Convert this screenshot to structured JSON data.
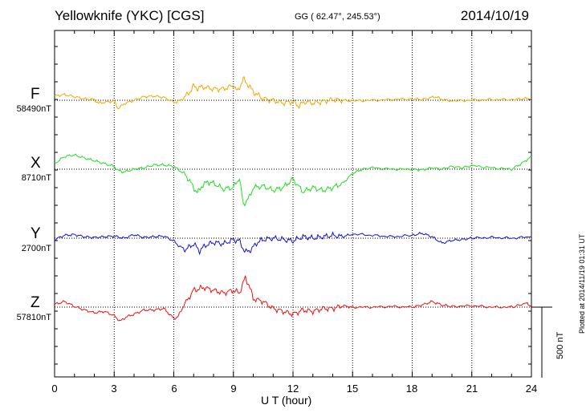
{
  "header": {
    "station": "Yellowknife (YKC)  [CGS]",
    "coords": "GG ( 62.47°, 245.53°)",
    "date": "2014/10/19"
  },
  "side_note": "Plotted at 2014/11/19 01:31  UT",
  "scale": {
    "label": "500 nT",
    "value_nT": 500
  },
  "chart_data": {
    "type": "line",
    "title": "Yellowknife (YKC)  [CGS]",
    "xlabel": "U T (hour)",
    "ylabel": "",
    "xlim": [
      0,
      24
    ],
    "x_ticks": [
      "0",
      "3",
      "6",
      "9",
      "12",
      "15",
      "18",
      "21",
      "24"
    ],
    "grid": true,
    "series": [
      {
        "name": "F",
        "base_label": "58490nT",
        "baseline_nT": 58490,
        "color": "#f0a800",
        "x": [
          0,
          0.5,
          1,
          1.5,
          2,
          2.2,
          2.5,
          3,
          3.2,
          3.5,
          4,
          4.5,
          5,
          5.5,
          6,
          6.2,
          6.5,
          6.8,
          7,
          7.2,
          7.5,
          8,
          8.5,
          9,
          9.2,
          9.5,
          9.8,
          10,
          10.2,
          10.5,
          11,
          11.5,
          12,
          12.3,
          12.6,
          13,
          13.5,
          14,
          14.5,
          15,
          16,
          17,
          18,
          18.5,
          19,
          19.2,
          19.5,
          20,
          21,
          22,
          23,
          23.5,
          24
        ],
        "y": [
          30,
          40,
          25,
          10,
          5,
          -20,
          -15,
          -5,
          -60,
          -25,
          0,
          25,
          30,
          20,
          -15,
          -10,
          15,
          60,
          100,
          85,
          95,
          80,
          80,
          105,
          60,
          150,
          100,
          60,
          40,
          10,
          0,
          -20,
          -10,
          -40,
          -10,
          -20,
          -10,
          5,
          0,
          -5,
          0,
          5,
          10,
          5,
          20,
          25,
          5,
          -5,
          0,
          5,
          5,
          10,
          15
        ]
      },
      {
        "name": "X",
        "base_label": "8710nT",
        "baseline_nT": 8710,
        "color": "#22dd22",
        "x": [
          0,
          0.5,
          1,
          1.5,
          2,
          2.5,
          3,
          3.2,
          3.5,
          4,
          4.5,
          5,
          5.5,
          6,
          6.3,
          6.6,
          7,
          7.2,
          7.4,
          7.7,
          8,
          8.5,
          9,
          9.3,
          9.5,
          9.8,
          10,
          10.5,
          11,
          11.5,
          12,
          12.5,
          13,
          13.5,
          14,
          14.5,
          15,
          15.5,
          16,
          17,
          18,
          18.5,
          19,
          19.5,
          20,
          20.5,
          21,
          22,
          23,
          23.5,
          24
        ],
        "y": [
          40,
          90,
          100,
          80,
          60,
          40,
          20,
          -10,
          -20,
          0,
          10,
          30,
          30,
          20,
          -10,
          -40,
          -130,
          -170,
          -120,
          -90,
          -100,
          -140,
          -130,
          -60,
          -250,
          -200,
          -130,
          -120,
          -150,
          -130,
          -70,
          -160,
          -130,
          -150,
          -130,
          -100,
          -30,
          0,
          10,
          0,
          0,
          -5,
          10,
          0,
          20,
          10,
          25,
          10,
          0,
          40,
          90
        ]
      },
      {
        "name": "Y",
        "base_label": "2700nT",
        "baseline_nT": 2700,
        "color": "#1010dd",
        "x": [
          0,
          0.5,
          1,
          1.5,
          2,
          2.5,
          3,
          3.5,
          4,
          4.5,
          5,
          5.5,
          6,
          6.3,
          6.6,
          7,
          7.3,
          7.6,
          8,
          8.5,
          9,
          9.3,
          9.6,
          9.9,
          10.2,
          10.5,
          11,
          11.5,
          12,
          12.5,
          13,
          13.5,
          14,
          14.5,
          15,
          16,
          17,
          18,
          18.5,
          19,
          19.5,
          20,
          20.5,
          21,
          22,
          23,
          24
        ],
        "y": [
          -10,
          20,
          25,
          10,
          5,
          10,
          15,
          0,
          25,
          5,
          10,
          15,
          -20,
          -60,
          -80,
          -40,
          -90,
          -50,
          -30,
          -40,
          -10,
          -20,
          -100,
          -80,
          -30,
          -10,
          0,
          -10,
          -20,
          10,
          0,
          10,
          20,
          10,
          30,
          20,
          10,
          20,
          35,
          10,
          -35,
          -15,
          -10,
          0,
          5,
          0,
          10
        ]
      },
      {
        "name": "Z",
        "base_label": "57810nT",
        "baseline_nT": 57810,
        "color": "#ee1010",
        "x": [
          0,
          0.5,
          1,
          1.5,
          2,
          2.5,
          3,
          3.3,
          3.6,
          4,
          4.5,
          5,
          5.5,
          6,
          6.2,
          6.5,
          7,
          7.3,
          7.5,
          8,
          8.5,
          9,
          9.3,
          9.6,
          9.8,
          10,
          10.5,
          11,
          11.5,
          12,
          12.5,
          13,
          13.5,
          14,
          14.5,
          15,
          16,
          17,
          18,
          18.5,
          19,
          19.5,
          20,
          21,
          22,
          23,
          23.8,
          24
        ],
        "y": [
          20,
          40,
          5,
          -20,
          -40,
          -30,
          -60,
          -100,
          -70,
          -50,
          -20,
          -20,
          -10,
          -80,
          -70,
          10,
          120,
          130,
          140,
          120,
          100,
          120,
          100,
          210,
          150,
          60,
          40,
          -10,
          -30,
          -50,
          -20,
          -30,
          -10,
          -10,
          10,
          0,
          0,
          5,
          0,
          15,
          40,
          15,
          5,
          10,
          0,
          0,
          30,
          0
        ]
      }
    ]
  }
}
